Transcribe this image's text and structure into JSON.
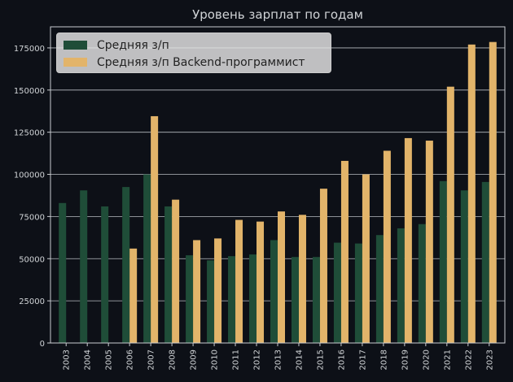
{
  "chart_data": {
    "type": "bar",
    "title": "Уровень зарплат по годам",
    "xlabel": "",
    "ylabel": "",
    "ylim": [
      0,
      187500
    ],
    "yticks": [
      "0",
      "25000",
      "50000",
      "75000",
      "100000",
      "125000",
      "150000",
      "175000"
    ],
    "grid": "horizontal",
    "legend_position": "top-left",
    "categories": [
      "2003",
      "2004",
      "2005",
      "2006",
      "2007",
      "2008",
      "2009",
      "2010",
      "2011",
      "2012",
      "2013",
      "2014",
      "2015",
      "2016",
      "2017",
      "2018",
      "2019",
      "2020",
      "2021",
      "2022",
      "2023"
    ],
    "series": [
      {
        "name": "Средняя з/п",
        "color": "#1f4d38",
        "values": [
          83000,
          90500,
          81000,
          92500,
          100000,
          81000,
          52000,
          49000,
          51500,
          52500,
          61000,
          51000,
          51000,
          59500,
          59000,
          64000,
          68000,
          70500,
          96000,
          90500,
          95500
        ]
      },
      {
        "name": "Средняя з/п Backend-программист",
        "color": "#e2b46a",
        "values": [
          null,
          null,
          null,
          56000,
          134500,
          85000,
          61000,
          62000,
          73000,
          72000,
          78000,
          76000,
          91500,
          108000,
          100000,
          114000,
          121500,
          120000,
          152000,
          177000,
          178500
        ]
      }
    ]
  }
}
